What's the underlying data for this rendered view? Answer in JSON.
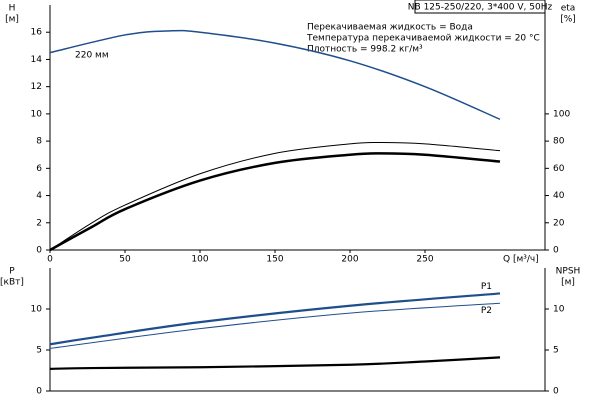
{
  "chart_data": [
    {
      "type": "line",
      "title": "NB 125-250/220, 3*400 V, 50Hz",
      "annotations": [
        "Перекачиваемая жидкость = Вода",
        "Температура перекачиваемой жидкости = 20 °C",
        "Плотность = 998.2 кг/м³"
      ],
      "curve_label": "220 мм",
      "ylabel": [
        "H",
        "[м]"
      ],
      "y2label": [
        "eta",
        "[%]"
      ],
      "xlabel": "Q [м³/ч]",
      "xlim": [
        0,
        330
      ],
      "xticks": [
        0,
        50,
        100,
        150,
        200,
        250
      ],
      "ylim": [
        0,
        18
      ],
      "yticks": [
        0,
        2,
        4,
        6,
        8,
        10,
        12,
        14,
        16
      ],
      "y2lim": [
        0,
        180
      ],
      "y2ticks": [
        0,
        20,
        40,
        60,
        80,
        100
      ],
      "series": [
        {
          "color": "#1f4e8c",
          "x": [
            0,
            50,
            80,
            100,
            150,
            200,
            250,
            300
          ],
          "values": [
            14.5,
            15.8,
            16.1,
            16.0,
            15.2,
            13.9,
            12.0,
            9.6
          ]
        },
        {
          "color": "#000000",
          "axis": "y2",
          "x": [
            0,
            28,
            50,
            100,
            150,
            200,
            220,
            250,
            300
          ],
          "values": [
            0,
            20,
            33,
            56,
            71,
            78,
            79,
            78,
            73
          ]
        },
        {
          "color": "#000000",
          "axis": "y2",
          "x": [
            0,
            28,
            50,
            100,
            150,
            200,
            220,
            250,
            300
          ],
          "values": [
            0,
            17,
            30,
            51,
            64,
            70,
            71,
            70,
            65
          ]
        }
      ]
    },
    {
      "type": "line",
      "ylabel": [
        "P",
        "[кВт]"
      ],
      "y2label": [
        "NPSH",
        "[м]"
      ],
      "xlim": [
        0,
        330
      ],
      "ylim": [
        0,
        15
      ],
      "yticks": [
        0,
        5,
        10
      ],
      "y2lim": [
        0,
        15
      ],
      "y2ticks": [
        0,
        5,
        10
      ],
      "series": [
        {
          "name": "P1",
          "color": "#1f4e8c",
          "x": [
            0,
            28,
            100,
            200,
            300
          ],
          "values": [
            5.7,
            6.5,
            8.4,
            10.4,
            11.9
          ]
        },
        {
          "name": "P2",
          "color": "#1f4e8c",
          "x": [
            0,
            100,
            200,
            300
          ],
          "values": [
            5.2,
            7.6,
            9.5,
            10.7
          ]
        },
        {
          "color": "#000000",
          "axis": "y2",
          "x": [
            0,
            28,
            100,
            200,
            250,
            300
          ],
          "values": [
            2.7,
            2.8,
            2.9,
            3.2,
            3.6,
            4.1
          ]
        }
      ]
    }
  ]
}
